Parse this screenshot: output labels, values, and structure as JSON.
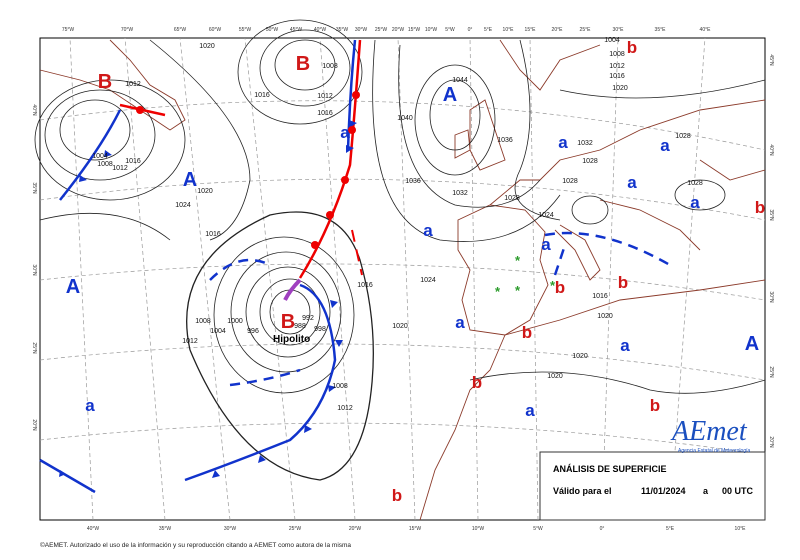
{
  "header": {
    "title": "ANÁLISIS DE SUPERFICIE",
    "valid_label": "Válido para el",
    "date": "11/01/2024",
    "at": "a",
    "time": "00 UTC"
  },
  "logo": {
    "name": "AEmet",
    "subtitle": "Agencia Estatal de Meteorología"
  },
  "footer": "©AEMET. Autorizado el uso de la información y su reproducción citando a AEMET como autora de la misma",
  "storm": "Hipolito",
  "centers": [
    "B",
    "B",
    "A",
    "A",
    "A",
    "B",
    "a",
    "a",
    "a",
    "a",
    "a",
    "a",
    "a",
    "a",
    "a",
    "a",
    "a",
    "A",
    "b",
    "b",
    "b",
    "b",
    "b",
    "b",
    "b",
    "b"
  ],
  "isobar_labels": [
    "1020",
    "1008",
    "1012",
    "1016",
    "1016",
    "1012",
    "1004",
    "1008",
    "1012",
    "1016",
    "1020",
    "1024",
    "1016",
    "1008",
    "1004",
    "1000",
    "996",
    "992",
    "988",
    "998",
    "1012",
    "1016",
    "1020",
    "1024",
    "1036",
    "1032",
    "1028",
    "1040",
    "1044",
    "1036",
    "1032",
    "1028",
    "1028",
    "1024",
    "1020",
    "1020",
    "1020",
    "1016",
    "1028",
    "1028",
    "1012",
    "1008",
    "1004",
    "1008",
    "1012",
    "1016",
    "1020"
  ],
  "lon_top": [
    "75°W",
    "70°W",
    "65°W",
    "60°W",
    "55°W",
    "50°W",
    "45°W",
    "40°W",
    "35°W",
    "30°W",
    "25°W",
    "20°W",
    "15°W",
    "10°W",
    "5°W",
    "0°",
    "5°E",
    "10°E",
    "15°E",
    "20°E",
    "25°E",
    "30°E",
    "35°E",
    "40°E"
  ],
  "lon_bottom": [
    "40°W",
    "35°W",
    "30°W",
    "25°W",
    "20°W",
    "15°W",
    "10°W",
    "5°W",
    "0°",
    "5°E",
    "10°E"
  ],
  "lat_left": [
    "40°N",
    "35°N",
    "30°N",
    "25°N",
    "20°N"
  ],
  "lat_right": [
    "45°N",
    "40°N",
    "35°N",
    "30°N",
    "25°N",
    "20°N"
  ]
}
